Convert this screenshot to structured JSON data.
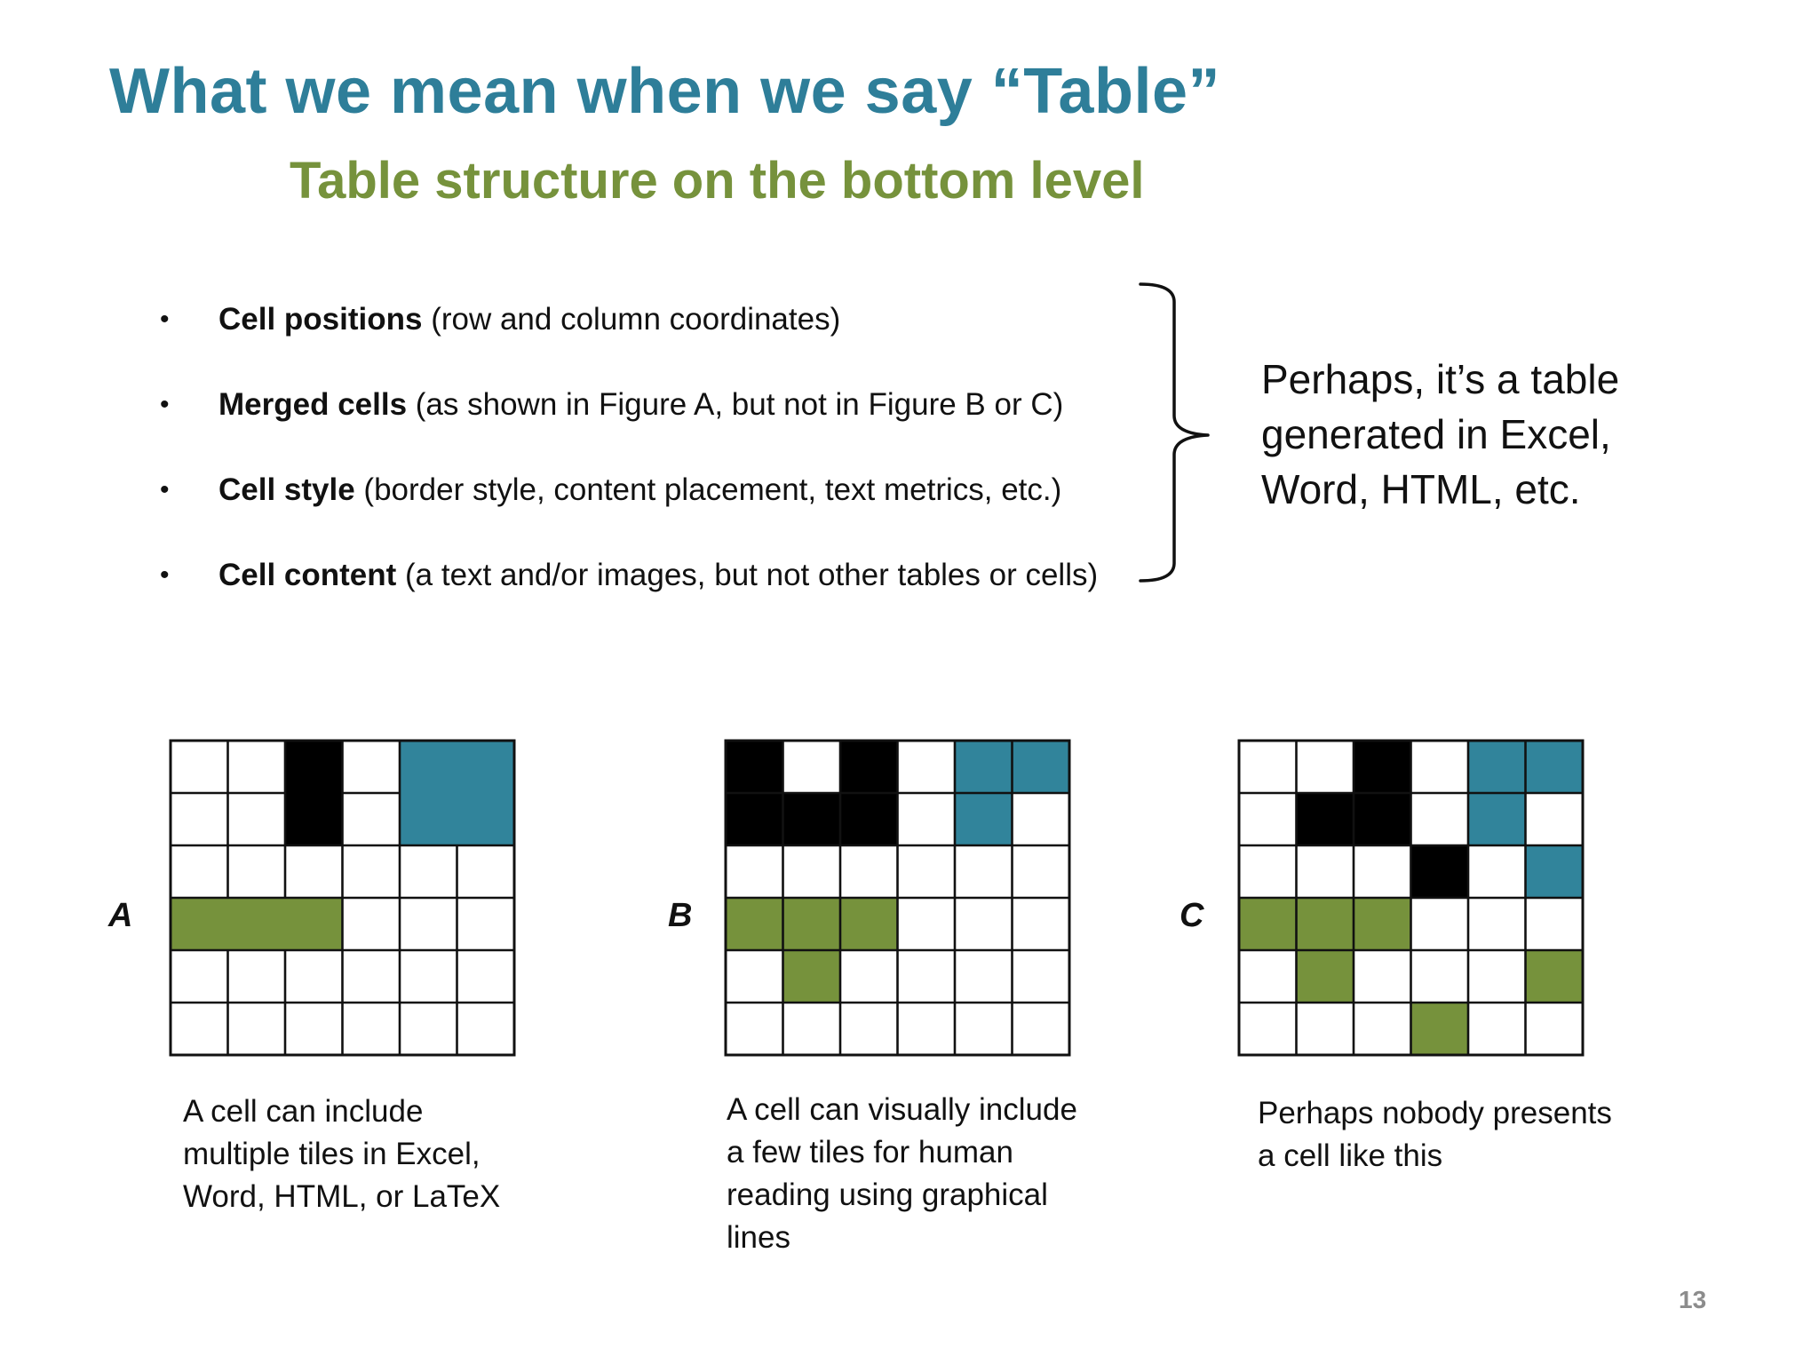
{
  "slide": {
    "title": "What we mean when we say “Table”",
    "subtitle": "Table structure on the bottom level",
    "page_number": "13"
  },
  "bullets": [
    {
      "bold": "Cell positions",
      "rest": " (row and column coordinates)"
    },
    {
      "bold": "Merged cells",
      "rest": " (as shown in Figure A, but not in Figure B or C)"
    },
    {
      "bold": "Cell style",
      "rest": " (border style, content placement, text metrics, etc.)"
    },
    {
      "bold": "Cell content",
      "rest": " (a text and/or images, but not other tables or cells)"
    }
  ],
  "callout": {
    "lines": [
      "Perhaps, it’s a table",
      "generated in Excel,",
      "Word, HTML, etc."
    ]
  },
  "colors": {
    "black": "#000000",
    "blue": "#31849b",
    "green": "#76923c",
    "white": "#ffffff",
    "title": "#2e7e99",
    "subtitle": "#76923c"
  },
  "figures": [
    {
      "label": "A",
      "grid": [
        [
          "w",
          "w",
          "k",
          "w",
          "b",
          "b"
        ],
        [
          "w",
          "w",
          "k",
          "w",
          "b",
          "b"
        ],
        [
          "w",
          "w",
          "w",
          "w",
          "w",
          "w"
        ],
        [
          "g",
          "g",
          "g",
          "w",
          "w",
          "w"
        ],
        [
          "w",
          "w",
          "w",
          "w",
          "w",
          "w"
        ],
        [
          "w",
          "w",
          "w",
          "w",
          "w",
          "w"
        ]
      ],
      "merged": true,
      "caption": [
        "A cell can include",
        "multiple tiles in Excel,",
        "Word, HTML, or LaTeX"
      ]
    },
    {
      "label": "B",
      "grid": [
        [
          "k",
          "w",
          "k",
          "w",
          "b",
          "b"
        ],
        [
          "k",
          "k",
          "k",
          "w",
          "b",
          "w"
        ],
        [
          "w",
          "w",
          "w",
          "w",
          "w",
          "w"
        ],
        [
          "g",
          "g",
          "g",
          "w",
          "w",
          "w"
        ],
        [
          "w",
          "g",
          "w",
          "w",
          "w",
          "w"
        ],
        [
          "w",
          "w",
          "w",
          "w",
          "w",
          "w"
        ]
      ],
      "merged": false,
      "caption": [
        "A cell can visually include",
        "a few tiles for human",
        "reading using graphical",
        "lines"
      ]
    },
    {
      "label": "C",
      "grid": [
        [
          "w",
          "w",
          "k",
          "w",
          "b",
          "b"
        ],
        [
          "w",
          "k",
          "k",
          "w",
          "b",
          "w"
        ],
        [
          "w",
          "w",
          "w",
          "k",
          "w",
          "b"
        ],
        [
          "g",
          "g",
          "g",
          "w",
          "w",
          "w"
        ],
        [
          "w",
          "g",
          "w",
          "w",
          "w",
          "g"
        ],
        [
          "w",
          "w",
          "w",
          "g",
          "w",
          "w"
        ]
      ],
      "merged": false,
      "caption": [
        "Perhaps nobody presents",
        "a cell like this"
      ]
    }
  ]
}
